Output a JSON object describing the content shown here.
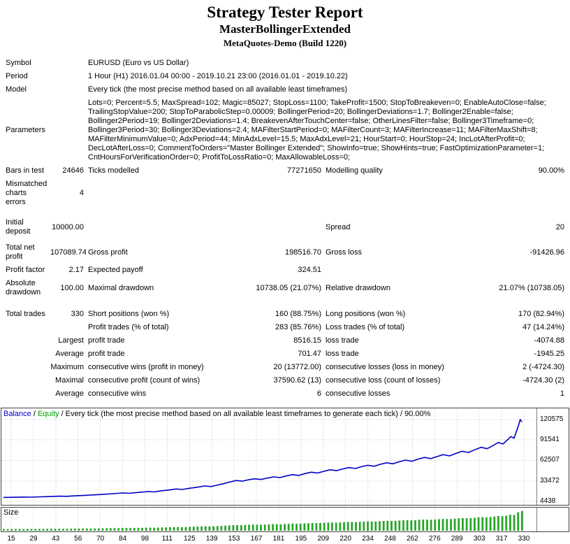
{
  "header": {
    "title": "Strategy Tester Report",
    "expert": "MasterBollingerExtended",
    "server": "MetaQuotes-Demo (Build 1220)"
  },
  "stats": {
    "symbol": {
      "label": "Symbol",
      "value": "EURUSD (Euro vs US Dollar)"
    },
    "period": {
      "label": "Period",
      "value": "1 Hour (H1) 2016.01.04 00:00 - 2019.10.21 23:00 (2016.01.01 - 2019.10.22)"
    },
    "model": {
      "label": "Model",
      "value": "Every tick (the most precise method based on all available least timeframes)"
    },
    "parameters": {
      "label": "Parameters",
      "value": "Lots=0; Percent=5.5; MaxSpread=102; Magic=85027; StopLoss=1100; TakeProfit=1500; StopToBreakeven=0; EnableAutoClose=false; TrailingStopValue=200; StopToParabolicStep=0.00009; BollingerPeriod=20; BollingerDeviations=1.7; Bollinger2Enable=false; Bollinger2Period=19; Bollinger2Deviations=1.4; BreakevenAfterTouchCenter=false; OtherLinesFilter=false; Bollinger3Timeframe=0; Bollinger3Period=30; Bollinger3Deviations=2.4; MAFilterStartPeriod=0; MAFilterCount=3; MAFilterIncrease=11; MAFilterMaxShift=8; MAFilterMinimumValue=0; AdxPeriod=44; MinAdxLevel=15.5; MaxAdxLevel=21; HourStart=0; HourStop=24; IncLotAfterProfit=0; DecLotAfterLoss=0; CommentToOrders=\"Master Bollinger Extended\"; ShowInfo=true; ShowHints=true; FastOptimizationParameter=1; CntHoursForVerificationOrder=0; ProfitToLossRatio=0; MaxAllowableLoss=0;"
    },
    "bars": {
      "label": "Bars in test",
      "value": "24646",
      "label2": "Ticks modelled",
      "value2": "77271650",
      "label3": "Modelling quality",
      "value3": "90.00%"
    },
    "mismatch": {
      "label": "Mismatched charts errors",
      "value": "4"
    },
    "deposit": {
      "label": "Initial deposit",
      "value": "10000.00",
      "label3": "Spread",
      "value3": "20"
    },
    "netprofit": {
      "label": "Total net profit",
      "value": "107089.74",
      "label2": "Gross profit",
      "value2": "198516.70",
      "label3": "Gross loss",
      "value3": "-91426.96"
    },
    "pfactor": {
      "label": "Profit factor",
      "value": "2.17",
      "label2": "Expected payoff",
      "value2": "324.51"
    },
    "absdd": {
      "label": "Absolute drawdown",
      "value": "100.00",
      "label2": "Maximal drawdown",
      "value2": "10738.05 (21.07%)",
      "label3": "Relative drawdown",
      "value3": "21.07% (10738.05)"
    },
    "trades": {
      "label": "Total trades",
      "value": "330",
      "label2": "Short positions (won %)",
      "value2": "160 (88.75%)",
      "label3": "Long positions (won %)",
      "value3": "170 (82.94%)"
    },
    "profittrades": {
      "label2": "Profit trades (% of total)",
      "value2": "283 (85.76%)",
      "label3": "Loss trades (% of total)",
      "value3": "47 (14.24%)"
    },
    "largest": {
      "sub": "Largest",
      "label2": "profit trade",
      "value2": "8516.15",
      "label3": "loss trade",
      "value3": "-4074.88"
    },
    "average": {
      "sub": "Average",
      "label2": "profit trade",
      "value2": "701.47",
      "label3": "loss trade",
      "value3": "-1945.25"
    },
    "maximum": {
      "sub": "Maximum",
      "label2": "consecutive wins (profit in money)",
      "value2": "20 (13772.00)",
      "label3": "consecutive losses (loss in money)",
      "value3": "2 (-4724.30)"
    },
    "maximal": {
      "sub": "Maximal",
      "label2": "consecutive profit (count of wins)",
      "value2": "37590.62 (13)",
      "label3": "consecutive loss (count of losses)",
      "value3": "-4724.30 (2)"
    },
    "avgconsec": {
      "sub": "Average",
      "label2": "consecutive wins",
      "value2": "6",
      "label3": "consecutive losses",
      "value3": "1"
    }
  },
  "chart_data": {
    "type": "line",
    "title": "",
    "xlabel": "",
    "ylabel": "",
    "grid": true,
    "legend_position": "top-left",
    "legend": {
      "balance_label": "Balance",
      "separator": " / ",
      "equity_label": "Equity",
      "suffix": " / Every tick (the most precise method based on all available least timeframes to generate each tick) / 90.00%"
    },
    "ylim": [
      4438,
      120575
    ],
    "xlim": [
      0,
      334
    ],
    "y_ticks": [
      120575,
      91541,
      62507,
      33472,
      4438
    ],
    "x_ticks": [
      15,
      29,
      43,
      56,
      70,
      84,
      98,
      111,
      125,
      139,
      153,
      167,
      181,
      195,
      209,
      220,
      234,
      248,
      262,
      276,
      289,
      303,
      317,
      330
    ],
    "series": [
      {
        "name": "Balance",
        "color": "#0000c8",
        "points": [
          [
            0,
            10000
          ],
          [
            6,
            10200
          ],
          [
            12,
            10500
          ],
          [
            18,
            10350
          ],
          [
            24,
            10900
          ],
          [
            30,
            11300
          ],
          [
            36,
            11800
          ],
          [
            40,
            11600
          ],
          [
            46,
            12300
          ],
          [
            52,
            13000
          ],
          [
            58,
            13700
          ],
          [
            64,
            14500
          ],
          [
            70,
            15400
          ],
          [
            76,
            16300
          ],
          [
            80,
            15900
          ],
          [
            86,
            17100
          ],
          [
            92,
            18300
          ],
          [
            96,
            17800
          ],
          [
            100,
            19200
          ],
          [
            106,
            20700
          ],
          [
            110,
            22000
          ],
          [
            114,
            21300
          ],
          [
            118,
            22900
          ],
          [
            124,
            24700
          ],
          [
            128,
            26300
          ],
          [
            132,
            25500
          ],
          [
            136,
            27400
          ],
          [
            140,
            29500
          ],
          [
            144,
            31800
          ],
          [
            148,
            34000
          ],
          [
            152,
            33100
          ],
          [
            156,
            35100
          ],
          [
            160,
            36400
          ],
          [
            164,
            35500
          ],
          [
            168,
            37500
          ],
          [
            172,
            39200
          ],
          [
            176,
            38200
          ],
          [
            180,
            40500
          ],
          [
            184,
            42400
          ],
          [
            188,
            41300
          ],
          [
            192,
            43800
          ],
          [
            196,
            45800
          ],
          [
            200,
            44600
          ],
          [
            204,
            47100
          ],
          [
            208,
            49300
          ],
          [
            212,
            48000
          ],
          [
            216,
            50500
          ],
          [
            220,
            52400
          ],
          [
            224,
            51100
          ],
          [
            228,
            53700
          ],
          [
            232,
            55700
          ],
          [
            236,
            54300
          ],
          [
            240,
            57000
          ],
          [
            244,
            59200
          ],
          [
            248,
            57700
          ],
          [
            252,
            60600
          ],
          [
            256,
            63000
          ],
          [
            260,
            61400
          ],
          [
            264,
            64400
          ],
          [
            268,
            66800
          ],
          [
            272,
            65100
          ],
          [
            276,
            68000
          ],
          [
            280,
            70700
          ],
          [
            284,
            69000
          ],
          [
            288,
            72400
          ],
          [
            292,
            75500
          ],
          [
            296,
            73800
          ],
          [
            300,
            77600
          ],
          [
            304,
            81200
          ],
          [
            308,
            79200
          ],
          [
            312,
            84000
          ],
          [
            315,
            88000
          ],
          [
            318,
            85800
          ],
          [
            321,
            92000
          ],
          [
            323,
            96500
          ],
          [
            325,
            94000
          ],
          [
            326,
            100000
          ],
          [
            327,
            106500
          ],
          [
            328,
            113000
          ],
          [
            329,
            120575
          ],
          [
            330,
            117090
          ]
        ]
      },
      {
        "name": "Equity",
        "color": "#00a000",
        "points_same_as_balance": true
      }
    ],
    "size_panel": {
      "label": "Size",
      "bar_color": "#2aa52a",
      "bar_count": 132
    }
  }
}
